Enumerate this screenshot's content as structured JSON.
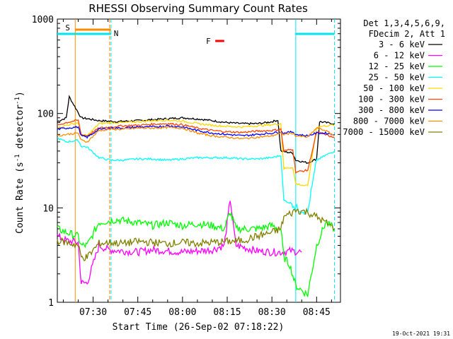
{
  "chart_data": {
    "type": "line",
    "title": "RHESSI Observing Summary Count Rates",
    "xlabel": "Start Time (26-Sep-02 07:18:22)",
    "ylabel_main": "Count Rate (s",
    "ylabel_sup1": "-1",
    "ylabel_mid": " detector",
    "ylabel_sup2": "-1",
    "ylabel_end": ")",
    "y_scale": "log",
    "ylim": [
      1,
      1000
    ],
    "xlim": [
      "07:18",
      "08:53"
    ],
    "x_tick_labels": [
      "07:30",
      "07:45",
      "08:00",
      "08:15",
      "08:30",
      "08:45"
    ],
    "x_tick_minutes": [
      450,
      465,
      480,
      495,
      510,
      525
    ],
    "y_tick_labels": [
      "1",
      "10",
      "100",
      "1000"
    ],
    "y_tick_values": [
      1,
      10,
      100,
      1000
    ],
    "legend_header": [
      "Det 1,3,4,5,6,9,",
      "FDecim 2, Att 1"
    ],
    "legend_placement": "right",
    "timestamp": "19-Oct-2021 19:31",
    "flags": {
      "saa_label": "S",
      "night_label": "N",
      "flare_label": "F",
      "saa_color": "#ff8c00",
      "night_color": "#00e5ee",
      "flare_color": "#ff0000"
    },
    "series": [
      {
        "name": "3 - 6 keV",
        "color": "#000000",
        "points": [
          [
            438,
            82
          ],
          [
            441,
            90
          ],
          [
            442,
            150
          ],
          [
            446,
            90
          ],
          [
            448,
            88
          ],
          [
            452,
            84
          ],
          [
            458,
            82
          ],
          [
            465,
            84
          ],
          [
            470,
            86
          ],
          [
            475,
            88
          ],
          [
            480,
            90
          ],
          [
            486,
            87
          ],
          [
            495,
            80
          ],
          [
            500,
            78
          ],
          [
            505,
            78
          ],
          [
            508,
            80
          ],
          [
            510,
            82
          ],
          [
            512,
            85
          ],
          [
            513,
            40
          ],
          [
            517,
            38
          ],
          [
            518,
            32
          ],
          [
            522,
            30
          ],
          [
            525,
            33
          ],
          [
            526,
            82
          ],
          [
            528,
            80
          ],
          [
            531,
            78
          ]
        ]
      },
      {
        "name": "6 - 12 keV",
        "color": "#ff00ff",
        "points": [
          [
            438,
            5
          ],
          [
            441,
            4.5
          ],
          [
            445,
            4.3
          ],
          [
            446,
            1.6
          ],
          [
            448,
            1.6
          ],
          [
            452,
            4
          ],
          [
            455,
            3.6
          ],
          [
            460,
            3.5
          ],
          [
            465,
            3.4
          ],
          [
            470,
            3.6
          ],
          [
            475,
            3.5
          ],
          [
            480,
            3.4
          ],
          [
            485,
            3.5
          ],
          [
            490,
            3.6
          ],
          [
            494,
            4.0
          ],
          [
            496,
            12
          ],
          [
            498,
            4
          ],
          [
            505,
            3.5
          ],
          [
            510,
            3.4
          ],
          [
            514,
            3.4
          ],
          [
            516,
            3.5
          ],
          [
            520,
            3.4
          ]
        ]
      },
      {
        "name": "12 - 25 keV",
        "color": "#00ff00",
        "points": [
          [
            438,
            6
          ],
          [
            441,
            5.5
          ],
          [
            445,
            5
          ],
          [
            446,
            4
          ],
          [
            448,
            4
          ],
          [
            452,
            7
          ],
          [
            458,
            7.5
          ],
          [
            465,
            7
          ],
          [
            470,
            6.5
          ],
          [
            475,
            7
          ],
          [
            480,
            6.5
          ],
          [
            485,
            6.8
          ],
          [
            490,
            6.5
          ],
          [
            494,
            6
          ],
          [
            496,
            9
          ],
          [
            498,
            6
          ],
          [
            505,
            6
          ],
          [
            510,
            6.5
          ],
          [
            513,
            6
          ],
          [
            514,
            3
          ],
          [
            516,
            2.5
          ],
          [
            518,
            1.5
          ],
          [
            522,
            1.2
          ],
          [
            525,
            4
          ],
          [
            528,
            7
          ],
          [
            531,
            6
          ]
        ]
      },
      {
        "name": "25 - 50 keV",
        "color": "#00ffff",
        "points": [
          [
            438,
            55
          ],
          [
            441,
            50
          ],
          [
            445,
            52
          ],
          [
            446,
            45
          ],
          [
            448,
            44
          ],
          [
            452,
            34
          ],
          [
            456,
            32
          ],
          [
            460,
            32
          ],
          [
            465,
            33
          ],
          [
            470,
            33
          ],
          [
            475,
            32
          ],
          [
            480,
            33
          ],
          [
            485,
            34
          ],
          [
            490,
            34
          ],
          [
            495,
            34
          ],
          [
            500,
            33
          ],
          [
            505,
            33
          ],
          [
            510,
            34
          ],
          [
            513,
            36
          ],
          [
            514,
            12
          ],
          [
            517,
            11
          ],
          [
            518,
            10
          ],
          [
            522,
            9
          ],
          [
            525,
            32
          ],
          [
            528,
            36
          ],
          [
            531,
            40
          ]
        ]
      },
      {
        "name": "50 - 100 keV",
        "color": "#ffd700",
        "points": [
          [
            438,
            70
          ],
          [
            441,
            75
          ],
          [
            445,
            80
          ],
          [
            446,
            60
          ],
          [
            448,
            58
          ],
          [
            452,
            78
          ],
          [
            456,
            80
          ],
          [
            460,
            80
          ],
          [
            465,
            82
          ],
          [
            470,
            84
          ],
          [
            475,
            85
          ],
          [
            480,
            83
          ],
          [
            485,
            78
          ],
          [
            490,
            75
          ],
          [
            495,
            73
          ],
          [
            500,
            72
          ],
          [
            505,
            74
          ],
          [
            510,
            76
          ],
          [
            513,
            78
          ],
          [
            514,
            26
          ],
          [
            517,
            27
          ],
          [
            518,
            18
          ],
          [
            522,
            17
          ],
          [
            525,
            72
          ],
          [
            528,
            74
          ],
          [
            531,
            76
          ]
        ]
      },
      {
        "name": "100 - 300 keV",
        "color": "#ff4500",
        "points": [
          [
            438,
            75
          ],
          [
            441,
            80
          ],
          [
            445,
            85
          ],
          [
            446,
            60
          ],
          [
            448,
            58
          ],
          [
            452,
            70
          ],
          [
            456,
            72
          ],
          [
            460,
            74
          ],
          [
            465,
            75
          ],
          [
            470,
            77
          ],
          [
            475,
            78
          ],
          [
            480,
            76
          ],
          [
            485,
            70
          ],
          [
            490,
            66
          ],
          [
            495,
            64
          ],
          [
            500,
            63
          ],
          [
            505,
            65
          ],
          [
            510,
            66
          ],
          [
            513,
            68
          ],
          [
            514,
            40
          ],
          [
            517,
            42
          ],
          [
            518,
            24
          ],
          [
            522,
            25
          ],
          [
            525,
            63
          ],
          [
            528,
            60
          ],
          [
            531,
            55
          ]
        ]
      },
      {
        "name": "300 - 800 keV",
        "color": "#0000ff",
        "points": [
          [
            438,
            68
          ],
          [
            441,
            70
          ],
          [
            445,
            72
          ],
          [
            446,
            58
          ],
          [
            448,
            56
          ],
          [
            452,
            68
          ],
          [
            456,
            70
          ],
          [
            460,
            70
          ],
          [
            465,
            72
          ],
          [
            470,
            72
          ],
          [
            475,
            74
          ],
          [
            480,
            72
          ],
          [
            485,
            66
          ],
          [
            490,
            62
          ],
          [
            495,
            60
          ],
          [
            500,
            58
          ],
          [
            505,
            60
          ],
          [
            510,
            62
          ],
          [
            513,
            64
          ],
          [
            514,
            62
          ],
          [
            517,
            64
          ],
          [
            518,
            60
          ],
          [
            522,
            58
          ],
          [
            525,
            62
          ],
          [
            528,
            62
          ],
          [
            531,
            60
          ]
        ]
      },
      {
        "name": "800 - 7000 keV",
        "color": "#ff8c00",
        "points": [
          [
            438,
            58
          ],
          [
            441,
            60
          ],
          [
            445,
            62
          ],
          [
            446,
            52
          ],
          [
            448,
            50
          ],
          [
            452,
            66
          ],
          [
            456,
            68
          ],
          [
            460,
            68
          ],
          [
            465,
            70
          ],
          [
            470,
            70
          ],
          [
            475,
            71
          ],
          [
            480,
            70
          ],
          [
            485,
            62
          ],
          [
            490,
            58
          ],
          [
            495,
            56
          ],
          [
            500,
            54
          ],
          [
            505,
            56
          ],
          [
            510,
            58
          ],
          [
            513,
            62
          ],
          [
            514,
            60
          ],
          [
            517,
            62
          ],
          [
            518,
            58
          ],
          [
            522,
            56
          ],
          [
            525,
            70
          ],
          [
            528,
            66
          ],
          [
            531,
            58
          ]
        ]
      },
      {
        "name": "7000 - 15000 keV",
        "color": "#808000",
        "points": [
          [
            438,
            4.5
          ],
          [
            441,
            4.3
          ],
          [
            445,
            4
          ],
          [
            446,
            3
          ],
          [
            448,
            3
          ],
          [
            452,
            4.2
          ],
          [
            456,
            4.3
          ],
          [
            460,
            4.2
          ],
          [
            465,
            4.4
          ],
          [
            470,
            4.3
          ],
          [
            475,
            4.2
          ],
          [
            480,
            4.3
          ],
          [
            485,
            4.2
          ],
          [
            490,
            4.3
          ],
          [
            495,
            4.4
          ],
          [
            500,
            4.5
          ],
          [
            505,
            5
          ],
          [
            510,
            5.5
          ],
          [
            513,
            6
          ],
          [
            514,
            8
          ],
          [
            517,
            9
          ],
          [
            518,
            9.5
          ],
          [
            522,
            9
          ],
          [
            525,
            8
          ],
          [
            528,
            7
          ],
          [
            531,
            6
          ]
        ]
      }
    ],
    "saa_interval": [
      "07:24",
      "07:36"
    ],
    "night_intervals": [
      [
        "07:18",
        "07:36"
      ],
      [
        "08:38",
        "08:51"
      ]
    ],
    "flare_interval": [
      "08:11",
      "08:14"
    ]
  }
}
